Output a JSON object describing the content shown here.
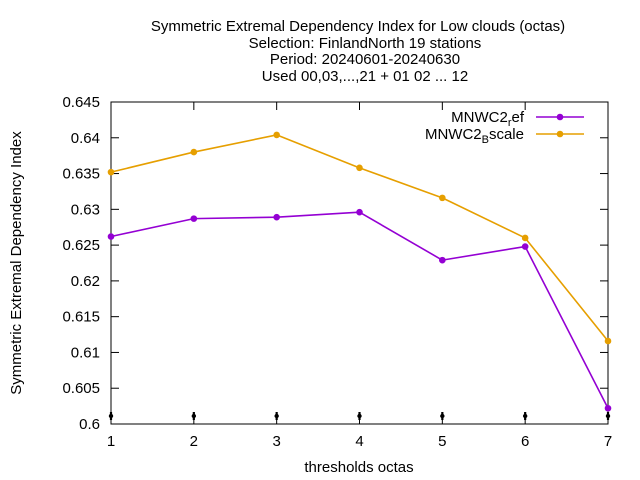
{
  "chart_data": {
    "type": "line",
    "title_lines": [
      "Symmetric Extremal Dependency Index  for Low clouds (octas)",
      "Selection: FinlandNorth     19 stations",
      "Period: 20240601-20240630",
      "Used 00,03,...,21 + 01 02 ... 12"
    ],
    "xlabel": "thresholds octas",
    "ylabel": "Symmetric Extremal Dependency Index",
    "x": [
      1,
      2,
      3,
      4,
      5,
      6,
      7
    ],
    "x_ticks": [
      "1",
      "2",
      "3",
      "4",
      "5",
      "6",
      "7"
    ],
    "xlim": [
      1,
      7
    ],
    "y_ticks": [
      "0.6",
      "0.605",
      "0.61",
      "0.615",
      "0.62",
      "0.625",
      "0.63",
      "0.635",
      "0.64",
      "0.645"
    ],
    "ylim": [
      0.6,
      0.645
    ],
    "grid": false,
    "legend_position": "top-right",
    "series": [
      {
        "name": "MNWC2_ref",
        "legend_main": "MNWC2",
        "legend_sub": "r",
        "legend_tail": "ef",
        "color": "#9400d3",
        "values": [
          0.6262,
          0.6287,
          0.6289,
          0.6296,
          0.6229,
          0.6248,
          0.6022
        ]
      },
      {
        "name": "MNWC2_Bscale",
        "legend_main": "MNWC2",
        "legend_sub": "B",
        "legend_tail": "scale",
        "color": "#e69f00",
        "values": [
          0.6352,
          0.638,
          0.6404,
          0.6358,
          0.6316,
          0.626,
          0.6116
        ]
      }
    ]
  }
}
